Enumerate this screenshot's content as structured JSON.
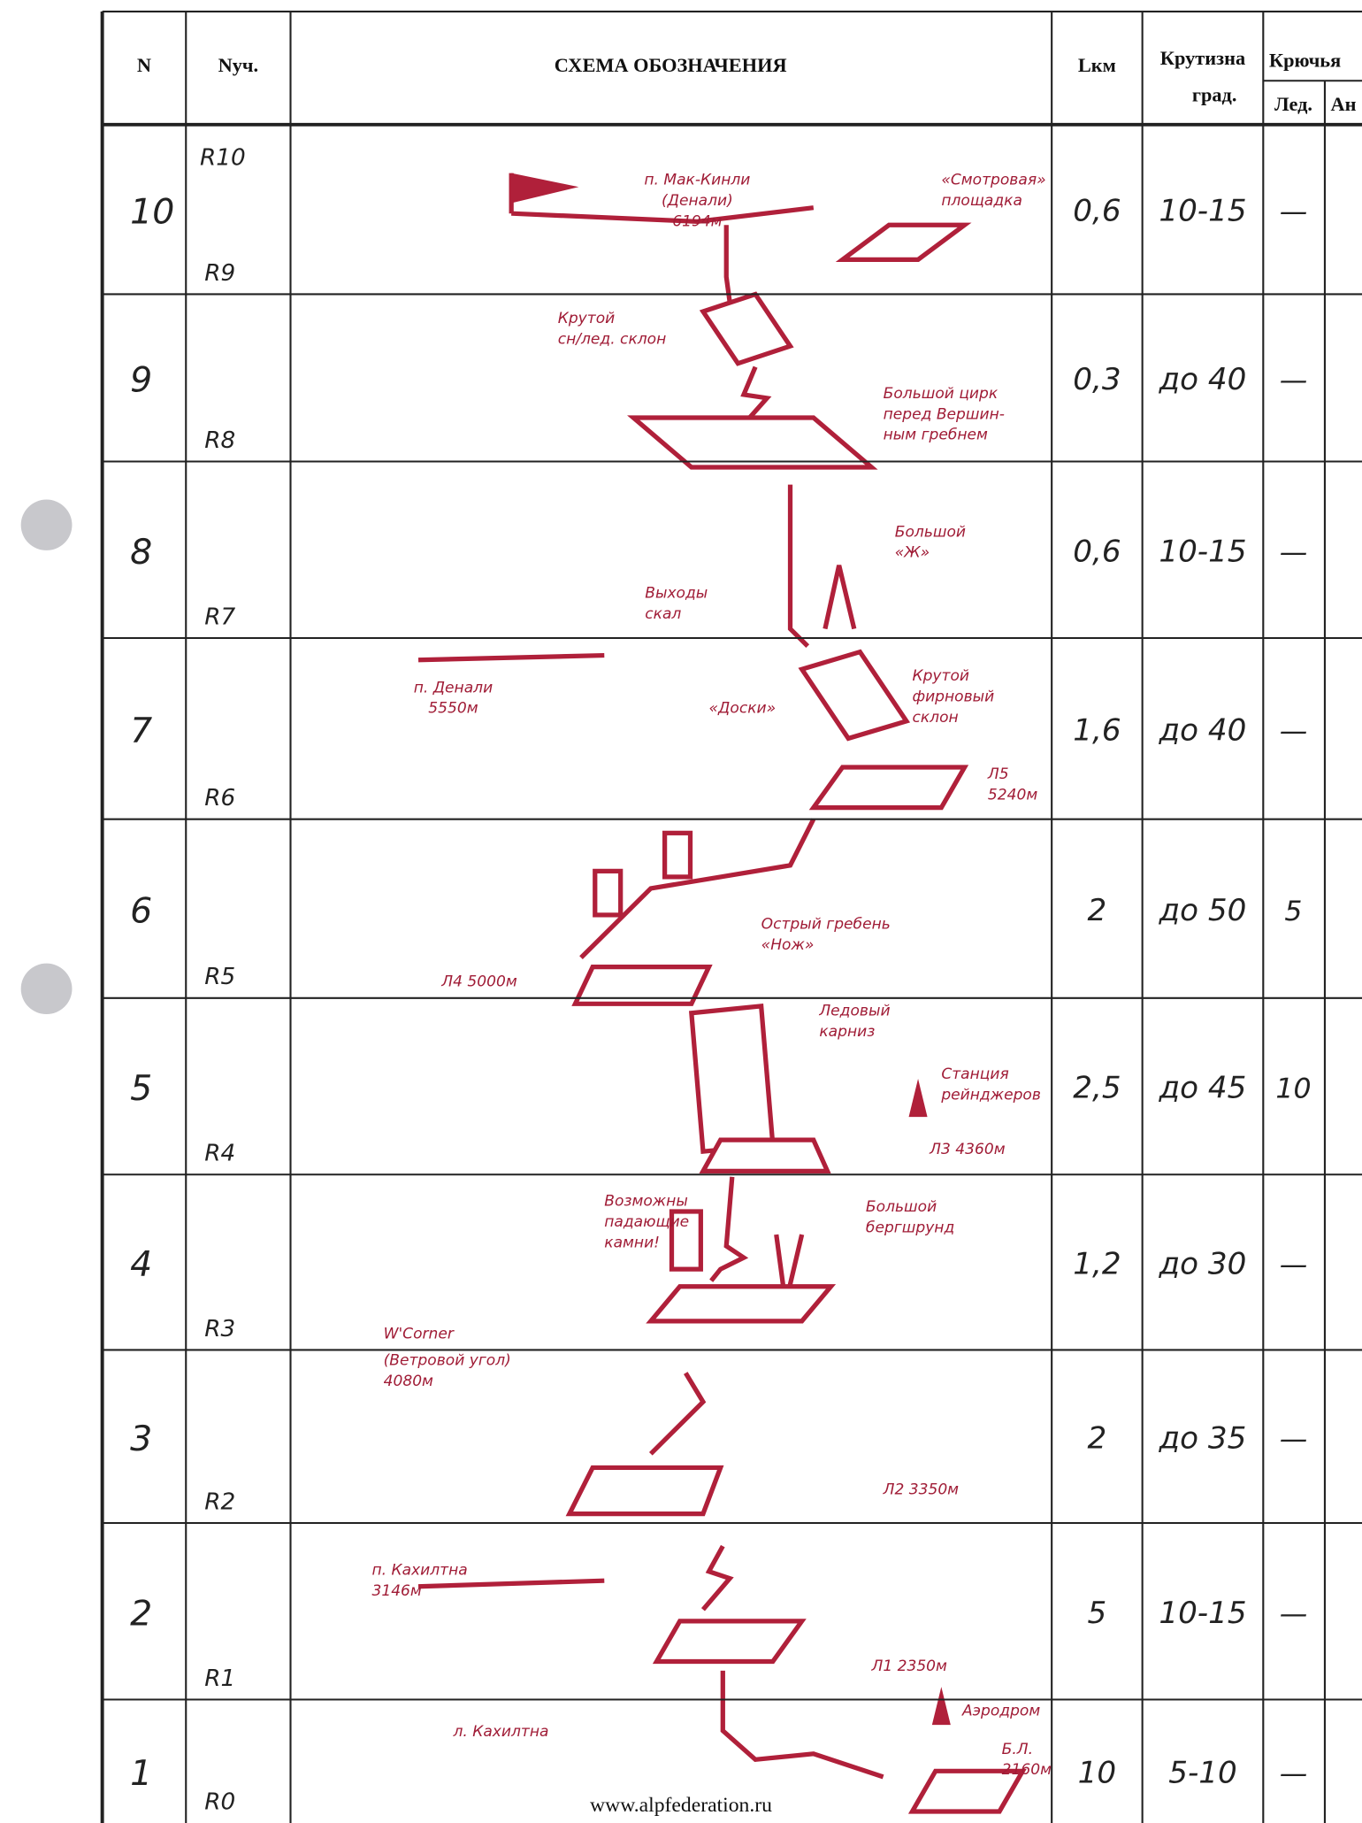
{
  "header": {
    "n": "N",
    "section": "Nуч.",
    "scheme": "СХЕМА ОБОЗНАЧЕНИЯ",
    "length": "Lкм",
    "slope": [
      "Крутизна",
      "град."
    ],
    "hooks": "Крючья",
    "ice": "Лед.",
    "rock": "Ан"
  },
  "rows": [
    {
      "n": "10",
      "top": "R10",
      "bottom": "R9",
      "length": "0,6",
      "slope": "10-15",
      "ice": "—"
    },
    {
      "n": "9",
      "bottom": "R8",
      "length": "0,3",
      "slope": "до 40",
      "ice": "—"
    },
    {
      "n": "8",
      "bottom": "R7",
      "length": "0,6",
      "slope": "10-15",
      "ice": "—"
    },
    {
      "n": "7",
      "bottom": "R6",
      "length": "1,6",
      "slope": "до 40",
      "ice": "—"
    },
    {
      "n": "6",
      "bottom": "R5",
      "length": "2",
      "slope": "до 50",
      "ice": "5"
    },
    {
      "n": "5",
      "bottom": "R4",
      "length": "2,5",
      "slope": "до 45",
      "ice": "10"
    },
    {
      "n": "4",
      "bottom": "R3",
      "length": "1,2",
      "slope": "до 30",
      "ice": "—"
    },
    {
      "n": "3",
      "bottom": "R2",
      "length": "2",
      "slope": "до 35",
      "ice": "—"
    },
    {
      "n": "2",
      "bottom": "R1",
      "length": "5",
      "slope": "10-15",
      "ice": "—"
    },
    {
      "n": "1",
      "bottom": "R0",
      "length": "10",
      "slope": "5-10",
      "ice": "—"
    }
  ],
  "annotations": [
    [
      "п. Мак-Кинли",
      "(Денали)",
      "6194м"
    ],
    [
      "«Смотровая»",
      "площадка"
    ],
    [
      "Крутой",
      "сн/лед. склон"
    ],
    [
      "Большой цирк",
      "перед Вершин-",
      "ным гребнем"
    ],
    [
      "Большой",
      "«Ж»"
    ],
    [
      "Выходы",
      "скал"
    ],
    [
      "п. Денали",
      "5550м"
    ],
    [
      "«Доски»"
    ],
    [
      "Крутой",
      "фирновый",
      "склон"
    ],
    [
      "Л5",
      "5240м"
    ],
    [
      "Острый гребень",
      "«Нож»"
    ],
    [
      "Л4 5000м"
    ],
    [
      "Ледовый",
      "карниз"
    ],
    [
      "Станция",
      "рейнджеров"
    ],
    [
      "Л3 4360м"
    ],
    [
      "Возможны",
      "падающие",
      "камни!"
    ],
    [
      "Большой",
      "бергшрунд"
    ],
    [
      "W'Corner"
    ],
    [
      "(Ветровой угол)",
      "4080м"
    ],
    [
      "Л2 3350м"
    ],
    [
      "п. Кахилтна",
      "3146м"
    ],
    [
      "Л1 2350м"
    ],
    [
      "л. Кахилтна"
    ],
    [
      "Аэродром"
    ],
    [
      "Б.Л.",
      "2160м"
    ]
  ],
  "footer": "www.alpfederation.ru"
}
